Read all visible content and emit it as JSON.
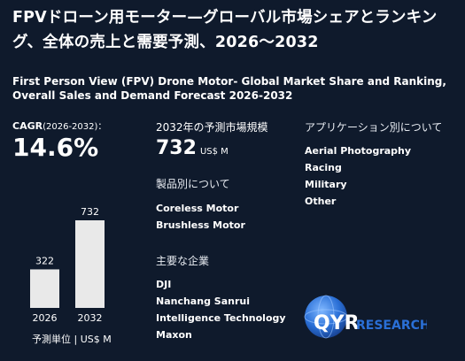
{
  "title_jp": "FPVドローン用モーター—グローバル市場シェアとランキング、全体の売上と需要予測、2026〜2032",
  "title_en": "First Person View (FPV) Drone Motor- Global Market Share and Ranking, Overall Sales and Demand Forecast 2026-2032",
  "cagr": {
    "label": "CAGR",
    "period": "(2026-2032)：",
    "value": "14.6%"
  },
  "market": {
    "label": "2032年の予測市場規模",
    "value": "732",
    "unit": "US$ M"
  },
  "products": {
    "heading": "製品別について",
    "items": [
      "Coreless Motor",
      "Brushless Motor"
    ]
  },
  "companies": {
    "heading": "主要な企業",
    "items": [
      "DJI",
      "Nanchang Sanrui",
      "Intelligence Technology",
      "Maxon"
    ]
  },
  "applications": {
    "heading": "アプリケーション別について",
    "items": [
      "Aerial Photography",
      "Racing",
      "Military",
      "Other"
    ]
  },
  "chart_data": {
    "type": "bar",
    "categories": [
      "2026",
      "2032"
    ],
    "values": [
      322,
      732
    ],
    "ylim": [
      0,
      732
    ],
    "unit_label": "予測単位 | US$ M",
    "bar_color": "#e9e9e9"
  },
  "logo": {
    "text_q": "QYR",
    "text_rest": "RESEARCH",
    "brand_color": "#2a6fd6"
  }
}
